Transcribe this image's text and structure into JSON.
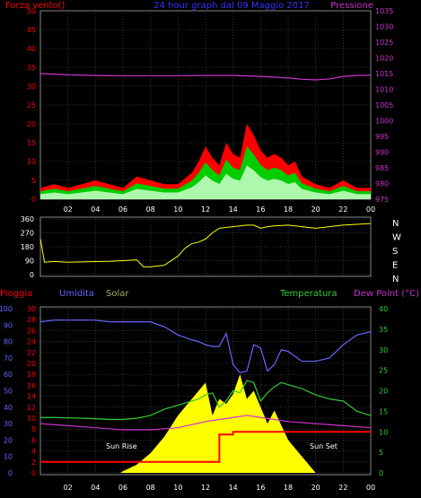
{
  "colors": {
    "bg": "#000000",
    "gust": "#ff0000",
    "wind": "#00cc00",
    "wind_avg": "#ffffff",
    "pressure": "#cc33cc",
    "direction": "#ffff00",
    "rain": "#ff0000",
    "humidity": "#6666ff",
    "solar": "#ffff00",
    "temperature": "#33cc33",
    "dewpoint": "#cc33cc",
    "title": "#3333ff",
    "grid": "#666666"
  },
  "panel1": {
    "title": "24 hour graph dal 09 Maggio 2017",
    "left_label": "Forza vento()",
    "right_label": "Pressione",
    "left_ticks": [
      "50",
      "45",
      "40",
      "35",
      "30",
      "25",
      "20",
      "15",
      "10",
      "5",
      "0"
    ],
    "right_ticks": [
      "1035",
      "1030",
      "1025",
      "1020",
      "1015",
      "1010",
      "1005",
      "1000",
      "995",
      "990",
      "985",
      "980",
      "975"
    ]
  },
  "panel2": {
    "left_ticks": [
      "360",
      "270",
      "180",
      "90",
      "0"
    ],
    "right_labels": [
      "N",
      "W",
      "S",
      "E",
      "N"
    ]
  },
  "panel3": {
    "label_rain": "Pioggia",
    "label_humidity": "Umidita",
    "label_solar": "Solar",
    "label_temperature": "Temperatura",
    "label_dewpoint": "Dew Point (°C)",
    "humidity_ticks": [
      "100",
      "90",
      "80",
      "70",
      "60",
      "50",
      "40",
      "30",
      "20",
      "10",
      "0"
    ],
    "rain_ticks": [
      "30",
      "28",
      "26",
      "24",
      "22",
      "20",
      "18",
      "16",
      "14",
      "12",
      "10",
      "8",
      "6",
      "4",
      "2",
      "0"
    ],
    "temp_ticks": [
      "40",
      "35",
      "30",
      "25",
      "20",
      "15",
      "10",
      "5",
      "0"
    ],
    "sunrise": "Sun Rise",
    "sunset": "Sun Set"
  },
  "x_ticks_top": [
    "02",
    "04",
    "06",
    "08",
    "10",
    "12",
    "14",
    "16",
    "18",
    "20",
    "22",
    "00"
  ],
  "x_ticks_bottom": [
    "02",
    "04",
    "06",
    "08",
    "10",
    "12",
    "14",
    "16",
    "18",
    "20",
    "22",
    "00"
  ],
  "chart_data": [
    {
      "type": "line",
      "title": "24 hour graph dal 09 Maggio 2017",
      "x_unit": "hour of day (0 = 01:00 start)",
      "ylim_left": [
        0,
        50
      ],
      "ylim_right": [
        975,
        1035
      ],
      "series": [
        {
          "name": "Forza vento",
          "axis": "left",
          "x": [
            0,
            1,
            2,
            3,
            4,
            5,
            6,
            7,
            8,
            9,
            10,
            11,
            11.5,
            12,
            12.5,
            13,
            13.5,
            14,
            14.5,
            15,
            15.5,
            16,
            16.5,
            17,
            17.5,
            18,
            18.5,
            19,
            20,
            21,
            22,
            23,
            24
          ],
          "y": [
            3,
            4,
            3,
            4,
            5,
            4,
            3,
            6,
            5,
            4,
            4,
            7,
            10,
            14,
            11,
            9,
            15,
            12,
            11,
            20,
            17,
            13,
            11,
            12,
            11,
            9,
            10,
            6,
            4,
            3,
            5,
            3,
            3
          ]
        },
        {
          "name": "Pressione",
          "axis": "right",
          "x": [
            0,
            2,
            4,
            6,
            8,
            10,
            12,
            14,
            16,
            18,
            19,
            20,
            21,
            22,
            23,
            24
          ],
          "y": [
            1015,
            1014.6,
            1014.4,
            1014.3,
            1014.3,
            1014.3,
            1014.4,
            1014.4,
            1014.1,
            1013.6,
            1013.2,
            1013.0,
            1013.3,
            1014.1,
            1014.4,
            1014.5
          ]
        }
      ]
    },
    {
      "type": "scatter",
      "title": "",
      "ylim": [
        0,
        360
      ],
      "series": [
        {
          "name": "Direzione",
          "x": [
            0,
            0.3,
            1,
            2,
            3,
            4,
            5,
            6,
            7,
            7.5,
            8,
            9,
            10,
            10.5,
            11,
            11.5,
            12,
            12.5,
            13,
            14,
            15,
            15.5,
            16,
            16.5,
            17,
            18,
            19,
            20,
            21,
            22,
            23,
            24
          ],
          "y": [
            230,
            80,
            85,
            80,
            82,
            84,
            86,
            90,
            95,
            50,
            50,
            60,
            120,
            170,
            200,
            210,
            230,
            270,
            300,
            310,
            320,
            320,
            300,
            310,
            315,
            320,
            310,
            300,
            310,
            320,
            325,
            330
          ]
        }
      ]
    },
    {
      "type": "line",
      "title": "",
      "ylim_humidity": [
        0,
        100
      ],
      "ylim_rain": [
        0,
        30
      ],
      "ylim_temp": [
        0,
        40
      ],
      "series": [
        {
          "name": "Umidita",
          "axis": "humidity",
          "x": [
            0,
            1,
            2,
            3,
            4,
            5,
            6,
            7,
            8,
            9,
            10,
            11,
            11.5,
            12,
            12.5,
            13,
            13.5,
            14,
            14.5,
            15,
            15.5,
            16,
            16.5,
            17,
            17.5,
            18,
            19,
            20,
            21,
            22,
            23,
            24
          ],
          "y": [
            92,
            93,
            93,
            93,
            93,
            92,
            92,
            92,
            92,
            89,
            84,
            81,
            80,
            78,
            77,
            77,
            85,
            66,
            61,
            62,
            78,
            76,
            62,
            66,
            75,
            74,
            68,
            68,
            70,
            78,
            84,
            86
          ]
        },
        {
          "name": "Solar",
          "axis": "humidity",
          "x": [
            0,
            5.8,
            6,
            7,
            8,
            9,
            10,
            11,
            11.5,
            12,
            12.5,
            13,
            13.5,
            14,
            14.5,
            15,
            15.5,
            16,
            16.5,
            17,
            18,
            19,
            19.5,
            20,
            24
          ],
          "y": [
            0,
            0,
            1,
            5,
            12,
            22,
            35,
            45,
            50,
            55,
            35,
            45,
            42,
            48,
            60,
            45,
            50,
            40,
            30,
            38,
            20,
            10,
            5,
            0,
            0
          ]
        },
        {
          "name": "Temperatura",
          "axis": "temp",
          "x": [
            0,
            1,
            2,
            3,
            4,
            5,
            6,
            7,
            8,
            9,
            10,
            11,
            11.5,
            12,
            12.5,
            13,
            13.5,
            14,
            14.5,
            15,
            15.5,
            16,
            16.5,
            17,
            17.5,
            18,
            19,
            20,
            21,
            22,
            23,
            24
          ],
          "y": [
            13.5,
            13.5,
            13.4,
            13.3,
            13.2,
            13,
            13,
            13.3,
            14,
            15.5,
            16.5,
            17.5,
            18,
            19,
            19.5,
            16,
            17.5,
            20,
            19.5,
            22.5,
            22,
            17.5,
            19.5,
            21,
            22,
            21.5,
            20.5,
            19,
            18,
            17.5,
            15,
            14
          ]
        },
        {
          "name": "Dew Point",
          "axis": "temp",
          "x": [
            0,
            2,
            4,
            6,
            8,
            10,
            12,
            13,
            14,
            15,
            16,
            17,
            18,
            20,
            22,
            24
          ],
          "y": [
            12,
            11.5,
            11,
            10.5,
            10.5,
            11,
            12.5,
            13,
            13.5,
            14,
            13.5,
            13,
            12.5,
            12,
            11.5,
            11
          ]
        },
        {
          "name": "Pioggia",
          "axis": "rain",
          "x": [
            0,
            12,
            13,
            14,
            15,
            16,
            16.5,
            17,
            18,
            19,
            20,
            21,
            22,
            23,
            24
          ],
          "y": [
            2,
            2,
            7,
            7.5,
            7.5,
            7.5,
            7.5,
            7.5,
            7.5,
            7.5,
            7.5,
            7.5,
            7.5,
            7.5,
            7.5
          ]
        }
      ]
    }
  ]
}
